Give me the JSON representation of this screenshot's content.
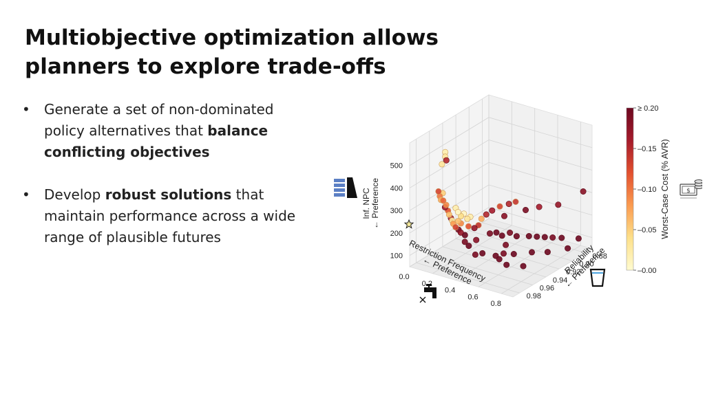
{
  "slide": {
    "title": "Multiobjective optimization allows planners to explore trade-offs",
    "bullets": [
      {
        "bullet_char": "•",
        "pre": "Generate a set of non-dominated policy alternatives that ",
        "bold": "balance conflicting objectives",
        "post": ""
      },
      {
        "bullet_char": "•",
        "pre": "Develop ",
        "bold": "robust solutions",
        "post": " that maintain performance across a wide range of plausible futures"
      }
    ]
  },
  "icons": {
    "z_axis": "stacked-bars-icon",
    "y_axis": "water-glass-icon",
    "x_axis": "faucet-icon",
    "colorbar": "money-stack-icon",
    "ideal_point": "star-icon"
  },
  "chart_data": {
    "type": "scatter",
    "projection": "3d",
    "xlabel": "Restriction Frequency",
    "xlabel_arrow": "← Preference",
    "ylabel": "Reliability",
    "ylabel_arrow": "← Preference",
    "zlabel": "Inf. NPC",
    "zlabel_arrow": "← Preference",
    "x_ticks": [
      "0.0",
      "0.2",
      "0.4",
      "0.6",
      "0.8"
    ],
    "y_ticks": [
      "0.88",
      "0.90",
      "0.92",
      "0.94",
      "0.96",
      "0.98"
    ],
    "z_ticks": [
      "100",
      "200",
      "300",
      "400",
      "500"
    ],
    "xlim": [
      0,
      0.9
    ],
    "ylim": [
      0.87,
      0.99
    ],
    "zlim": [
      50,
      600
    ],
    "colorbar": {
      "label": "Worst-Case Cost (% AVR)",
      "ticks": [
        "0.00",
        "0.05",
        "0.10",
        "0.15",
        "≥ 0.20"
      ],
      "range": [
        0,
        0.2
      ],
      "colors": [
        "#fffbd0",
        "#fde08a",
        "#fb9b50",
        "#e2502f",
        "#a51b2b",
        "#6d0820"
      ]
    },
    "grid": true,
    "points": [
      {
        "x": 0.08,
        "y": 0.95,
        "z": 500,
        "c": 0.02
      },
      {
        "x": 0.08,
        "y": 0.95,
        "z": 480,
        "c": 0.03
      },
      {
        "x": 0.09,
        "y": 0.95,
        "z": 465,
        "c": 0.15
      },
      {
        "x": 0.08,
        "y": 0.955,
        "z": 455,
        "c": 0.03
      },
      {
        "x": 0.05,
        "y": 0.955,
        "z": 330,
        "c": 0.13
      },
      {
        "x": 0.05,
        "y": 0.953,
        "z": 305,
        "c": 0.1
      },
      {
        "x": 0.06,
        "y": 0.953,
        "z": 290,
        "c": 0.07
      },
      {
        "x": 0.07,
        "y": 0.952,
        "z": 320,
        "c": 0.05
      },
      {
        "x": 0.08,
        "y": 0.953,
        "z": 290,
        "c": 0.11
      },
      {
        "x": 0.09,
        "y": 0.952,
        "z": 260,
        "c": 0.16
      },
      {
        "x": 0.1,
        "y": 0.952,
        "z": 272,
        "c": 0.09
      },
      {
        "x": 0.11,
        "y": 0.951,
        "z": 246,
        "c": 0.12
      },
      {
        "x": 0.12,
        "y": 0.951,
        "z": 230,
        "c": 0.06
      },
      {
        "x": 0.13,
        "y": 0.95,
        "z": 214,
        "c": 0.15
      },
      {
        "x": 0.14,
        "y": 0.95,
        "z": 205,
        "c": 0.03
      },
      {
        "x": 0.15,
        "y": 0.95,
        "z": 192,
        "c": 0.08
      },
      {
        "x": 0.17,
        "y": 0.95,
        "z": 180,
        "c": 0.13
      },
      {
        "x": 0.19,
        "y": 0.949,
        "z": 170,
        "c": 0.19
      },
      {
        "x": 0.21,
        "y": 0.949,
        "z": 160,
        "c": 0.17
      },
      {
        "x": 0.24,
        "y": 0.948,
        "z": 152,
        "c": 0.2
      },
      {
        "x": 0.16,
        "y": 0.948,
        "z": 260,
        "c": 0.02
      },
      {
        "x": 0.18,
        "y": 0.948,
        "z": 245,
        "c": 0.01
      },
      {
        "x": 0.2,
        "y": 0.947,
        "z": 228,
        "c": 0.04
      },
      {
        "x": 0.22,
        "y": 0.946,
        "z": 240,
        "c": 0.01
      },
      {
        "x": 0.25,
        "y": 0.946,
        "z": 222,
        "c": 0.03
      },
      {
        "x": 0.27,
        "y": 0.945,
        "z": 232,
        "c": 0.02
      },
      {
        "x": 0.18,
        "y": 0.948,
        "z": 205,
        "c": 0.06
      },
      {
        "x": 0.2,
        "y": 0.947,
        "z": 196,
        "c": 0.09
      },
      {
        "x": 0.26,
        "y": 0.946,
        "z": 190,
        "c": 0.12
      },
      {
        "x": 0.3,
        "y": 0.944,
        "z": 185,
        "c": 0.17
      },
      {
        "x": 0.33,
        "y": 0.943,
        "z": 200,
        "c": 0.14
      },
      {
        "x": 0.35,
        "y": 0.942,
        "z": 230,
        "c": 0.07
      },
      {
        "x": 0.38,
        "y": 0.94,
        "z": 250,
        "c": 0.15
      },
      {
        "x": 0.42,
        "y": 0.938,
        "z": 270,
        "c": 0.16
      },
      {
        "x": 0.47,
        "y": 0.935,
        "z": 290,
        "c": 0.13
      },
      {
        "x": 0.52,
        "y": 0.93,
        "z": 300,
        "c": 0.15
      },
      {
        "x": 0.55,
        "y": 0.925,
        "z": 305,
        "c": 0.14
      },
      {
        "x": 0.48,
        "y": 0.93,
        "z": 240,
        "c": 0.18
      },
      {
        "x": 0.58,
        "y": 0.915,
        "z": 255,
        "c": 0.19
      },
      {
        "x": 0.64,
        "y": 0.905,
        "z": 260,
        "c": 0.16
      },
      {
        "x": 0.72,
        "y": 0.89,
        "z": 255,
        "c": 0.17
      },
      {
        "x": 0.4,
        "y": 0.938,
        "z": 165,
        "c": 0.19
      },
      {
        "x": 0.44,
        "y": 0.935,
        "z": 170,
        "c": 0.2
      },
      {
        "x": 0.46,
        "y": 0.93,
        "z": 150,
        "c": 0.2
      },
      {
        "x": 0.5,
        "y": 0.925,
        "z": 160,
        "c": 0.19
      },
      {
        "x": 0.53,
        "y": 0.92,
        "z": 140,
        "c": 0.2
      },
      {
        "x": 0.58,
        "y": 0.91,
        "z": 130,
        "c": 0.2
      },
      {
        "x": 0.62,
        "y": 0.905,
        "z": 125,
        "c": 0.2
      },
      {
        "x": 0.66,
        "y": 0.9,
        "z": 120,
        "c": 0.2
      },
      {
        "x": 0.7,
        "y": 0.895,
        "z": 115,
        "c": 0.19
      },
      {
        "x": 0.75,
        "y": 0.89,
        "z": 112,
        "c": 0.2
      },
      {
        "x": 0.84,
        "y": 0.88,
        "z": 105,
        "c": 0.2
      },
      {
        "x": 0.8,
        "y": 0.92,
        "z": 110,
        "c": 0.2
      },
      {
        "x": 0.72,
        "y": 0.93,
        "z": 115,
        "c": 0.2
      },
      {
        "x": 0.62,
        "y": 0.94,
        "z": 110,
        "c": 0.2
      },
      {
        "x": 0.56,
        "y": 0.945,
        "z": 112,
        "c": 0.19
      },
      {
        "x": 0.52,
        "y": 0.95,
        "z": 105,
        "c": 0.2
      },
      {
        "x": 0.58,
        "y": 0.955,
        "z": 108,
        "c": 0.2
      },
      {
        "x": 0.66,
        "y": 0.958,
        "z": 100,
        "c": 0.2
      },
      {
        "x": 0.76,
        "y": 0.95,
        "z": 95,
        "c": 0.2
      },
      {
        "x": 0.86,
        "y": 0.9,
        "z": 100,
        "c": 0.2
      },
      {
        "x": 0.88,
        "y": 0.88,
        "z": 320,
        "c": 0.18
      },
      {
        "x": 0.55,
        "y": 0.94,
        "z": 140,
        "c": 0.19
      },
      {
        "x": 0.35,
        "y": 0.95,
        "z": 150,
        "c": 0.18
      },
      {
        "x": 0.28,
        "y": 0.955,
        "z": 140,
        "c": 0.19
      },
      {
        "x": 0.32,
        "y": 0.956,
        "z": 130,
        "c": 0.2
      },
      {
        "x": 0.45,
        "y": 0.958,
        "z": 120,
        "c": 0.2
      },
      {
        "x": 0.4,
        "y": 0.96,
        "z": 110,
        "c": 0.19
      }
    ]
  }
}
